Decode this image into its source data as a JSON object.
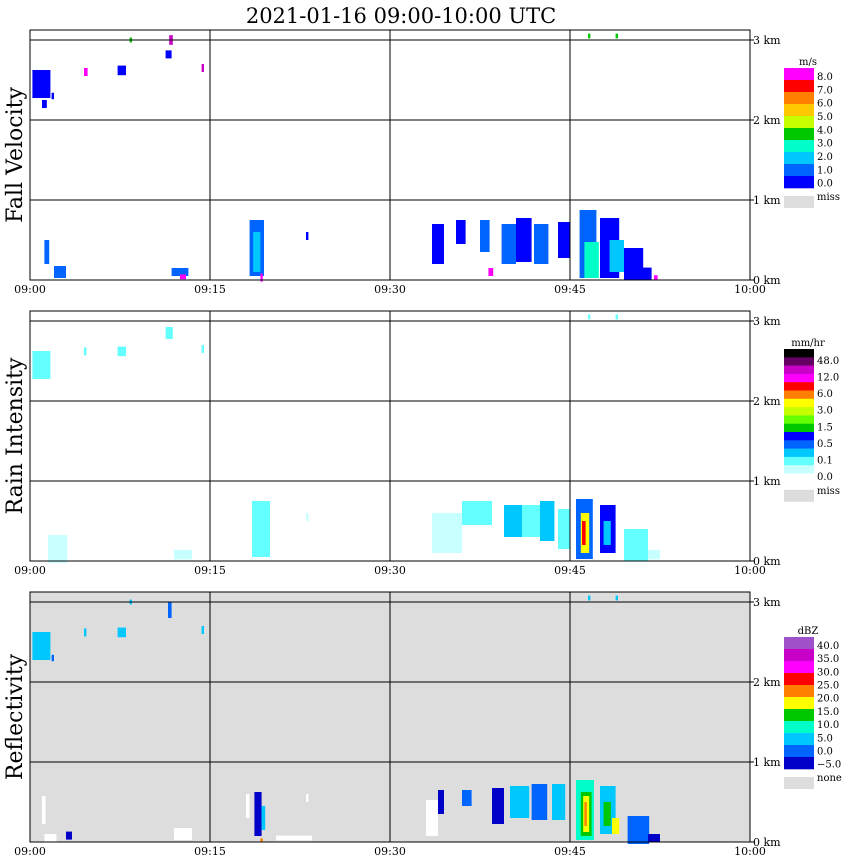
{
  "title": "2021-01-16   09:00-10:00 UTC",
  "chart_data": [
    {
      "type": "heatmap",
      "ylabel": "Fall Velocity",
      "x_ticks": [
        "09:00",
        "09:15",
        "09:30",
        "09:45",
        "10:00"
      ],
      "y_ticks": [
        "0 km",
        "1 km",
        "2 km",
        "3 km"
      ],
      "xlim": [
        "09:00",
        "10:00"
      ],
      "ylim": [
        0,
        3.1
      ],
      "grid": true,
      "background": "#ffffff",
      "legend": {
        "unit": "m/s",
        "labels": [
          "8.0",
          "7.0",
          "6.0",
          "5.0",
          "4.0",
          "3.0",
          "2.0",
          "1.0",
          "0.0"
        ],
        "colors": [
          "#ff00ff",
          "#ff0000",
          "#ff8000",
          "#ffc800",
          "#c8ff00",
          "#00c800",
          "#00ffc8",
          "#00c8ff",
          "#0064ff",
          "#0000ff"
        ],
        "missing_label": "miss",
        "missing_color": "#dddddd"
      },
      "echoes": [
        {
          "t": 0.2,
          "z": 2.45,
          "w": 1.5,
          "h": 0.35,
          "color": "#0000ff"
        },
        {
          "t": 1.0,
          "z": 2.2,
          "w": 0.4,
          "h": 0.1,
          "color": "#0000ff"
        },
        {
          "t": 1.8,
          "z": 2.3,
          "w": 0.2,
          "h": 0.08,
          "color": "#0000ff"
        },
        {
          "t": 4.5,
          "z": 2.6,
          "w": 0.3,
          "h": 0.1,
          "color": "#ff00ff"
        },
        {
          "t": 7.3,
          "z": 2.62,
          "w": 0.7,
          "h": 0.12,
          "color": "#0000ff"
        },
        {
          "t": 8.3,
          "z": 3.0,
          "w": 0.2,
          "h": 0.06,
          "color": "#00c800"
        },
        {
          "t": 11.6,
          "z": 3.0,
          "w": 0.3,
          "h": 0.12,
          "color": "#c800c8"
        },
        {
          "t": 11.3,
          "z": 2.82,
          "w": 0.5,
          "h": 0.1,
          "color": "#0000ff"
        },
        {
          "t": 14.3,
          "z": 2.65,
          "w": 0.2,
          "h": 0.1,
          "color": "#c800c8"
        },
        {
          "t": 1.2,
          "z": 0.35,
          "w": 0.4,
          "h": 0.3,
          "color": "#0064ff"
        },
        {
          "t": 2.0,
          "z": 0.1,
          "w": 1.0,
          "h": 0.15,
          "color": "#0064ff"
        },
        {
          "t": 11.8,
          "z": 0.1,
          "w": 1.4,
          "h": 0.1,
          "color": "#0064ff"
        },
        {
          "t": 12.5,
          "z": 0.04,
          "w": 0.5,
          "h": 0.06,
          "color": "#ff00ff"
        },
        {
          "t": 18.3,
          "z": 0.4,
          "w": 1.2,
          "h": 0.7,
          "color": "#0064ff"
        },
        {
          "t": 18.6,
          "z": 0.35,
          "w": 0.6,
          "h": 0.5,
          "color": "#00c8ff"
        },
        {
          "t": 19.2,
          "z": 0.03,
          "w": 0.2,
          "h": 0.1,
          "color": "#ff00ff"
        },
        {
          "t": 23.0,
          "z": 0.55,
          "w": 0.2,
          "h": 0.1,
          "color": "#0000ff"
        },
        {
          "t": 33.5,
          "z": 0.45,
          "w": 1.0,
          "h": 0.5,
          "color": "#0000ff"
        },
        {
          "t": 35.5,
          "z": 0.6,
          "w": 0.8,
          "h": 0.3,
          "color": "#0000ff"
        },
        {
          "t": 37.5,
          "z": 0.55,
          "w": 0.8,
          "h": 0.4,
          "color": "#0064ff"
        },
        {
          "t": 38.2,
          "z": 0.1,
          "w": 0.4,
          "h": 0.1,
          "color": "#ff00ff"
        },
        {
          "t": 39.3,
          "z": 0.45,
          "w": 1.2,
          "h": 0.5,
          "color": "#0064ff"
        },
        {
          "t": 40.5,
          "z": 0.5,
          "w": 1.3,
          "h": 0.55,
          "color": "#0000ff"
        },
        {
          "t": 42.0,
          "z": 0.45,
          "w": 1.2,
          "h": 0.5,
          "color": "#0064ff"
        },
        {
          "t": 44.0,
          "z": 0.5,
          "w": 1.0,
          "h": 0.45,
          "color": "#0000ff"
        },
        {
          "t": 45.8,
          "z": 0.45,
          "w": 1.4,
          "h": 0.85,
          "color": "#0064ff"
        },
        {
          "t": 46.2,
          "z": 0.25,
          "w": 1.2,
          "h": 0.45,
          "color": "#00ffc8"
        },
        {
          "t": 47.5,
          "z": 0.4,
          "w": 1.6,
          "h": 0.75,
          "color": "#0000ff"
        },
        {
          "t": 48.3,
          "z": 0.3,
          "w": 1.2,
          "h": 0.4,
          "color": "#00c8ff"
        },
        {
          "t": 49.5,
          "z": 0.2,
          "w": 1.6,
          "h": 0.4,
          "color": "#0000ff"
        },
        {
          "t": 51.0,
          "z": 0.08,
          "w": 0.8,
          "h": 0.15,
          "color": "#0000ff"
        },
        {
          "t": 52.0,
          "z": 0.03,
          "w": 0.3,
          "h": 0.06,
          "color": "#ff00ff"
        },
        {
          "t": 46.5,
          "z": 3.05,
          "w": 0.2,
          "h": 0.06,
          "color": "#00c800"
        },
        {
          "t": 48.8,
          "z": 3.05,
          "w": 0.2,
          "h": 0.06,
          "color": "#00c800"
        }
      ]
    },
    {
      "type": "heatmap",
      "ylabel": "Rain Intensity",
      "x_ticks": [
        "09:00",
        "09:15",
        "09:30",
        "09:45",
        "10:00"
      ],
      "y_ticks": [
        "0 km",
        "1 km",
        "2 km",
        "3 km"
      ],
      "xlim": [
        "09:00",
        "10:00"
      ],
      "ylim": [
        0,
        3.1
      ],
      "grid": true,
      "background": "#ffffff",
      "legend": {
        "unit": "mm/hr",
        "labels": [
          "48.0",
          "12.0",
          "6.0",
          "3.0",
          "1.5",
          "0.5",
          "0.1",
          "0.0"
        ],
        "colors": [
          "#000000",
          "#640064",
          "#c800c8",
          "#ff00ff",
          "#ff0000",
          "#ff8000",
          "#ffff00",
          "#c8ff00",
          "#64ff00",
          "#00c800",
          "#0000ff",
          "#0064ff",
          "#00c8ff",
          "#64ffff",
          "#c8ffff",
          "#ffffff"
        ],
        "missing_label": "miss",
        "missing_color": "#dddddd"
      },
      "echoes": [
        {
          "t": 0.2,
          "z": 2.45,
          "w": 1.5,
          "h": 0.35,
          "color": "#64ffff"
        },
        {
          "t": 4.5,
          "z": 2.62,
          "w": 0.2,
          "h": 0.1,
          "color": "#64ffff"
        },
        {
          "t": 7.3,
          "z": 2.62,
          "w": 0.7,
          "h": 0.12,
          "color": "#64ffff"
        },
        {
          "t": 11.3,
          "z": 2.85,
          "w": 0.6,
          "h": 0.15,
          "color": "#64ffff"
        },
        {
          "t": 14.3,
          "z": 2.65,
          "w": 0.2,
          "h": 0.1,
          "color": "#64ffff"
        },
        {
          "t": 1.5,
          "z": 0.15,
          "w": 1.6,
          "h": 0.35,
          "color": "#c8ffff"
        },
        {
          "t": 12.0,
          "z": 0.08,
          "w": 1.5,
          "h": 0.12,
          "color": "#c8ffff"
        },
        {
          "t": 18.5,
          "z": 0.4,
          "w": 1.5,
          "h": 0.7,
          "color": "#64ffff"
        },
        {
          "t": 23.0,
          "z": 0.55,
          "w": 0.2,
          "h": 0.1,
          "color": "#c8ffff"
        },
        {
          "t": 33.5,
          "z": 0.35,
          "w": 2.5,
          "h": 0.5,
          "color": "#c8ffff"
        },
        {
          "t": 36.0,
          "z": 0.6,
          "w": 2.5,
          "h": 0.3,
          "color": "#64ffff"
        },
        {
          "t": 39.5,
          "z": 0.5,
          "w": 1.5,
          "h": 0.4,
          "color": "#00c8ff"
        },
        {
          "t": 41.0,
          "z": 0.5,
          "w": 1.5,
          "h": 0.4,
          "color": "#64ffff"
        },
        {
          "t": 42.5,
          "z": 0.5,
          "w": 1.2,
          "h": 0.5,
          "color": "#00c8ff"
        },
        {
          "t": 44.0,
          "z": 0.4,
          "w": 1.0,
          "h": 0.5,
          "color": "#64ffff"
        },
        {
          "t": 45.5,
          "z": 0.4,
          "w": 1.4,
          "h": 0.75,
          "color": "#0064ff"
        },
        {
          "t": 45.9,
          "z": 0.35,
          "w": 0.7,
          "h": 0.5,
          "color": "#ffff00"
        },
        {
          "t": 46.0,
          "z": 0.35,
          "w": 0.3,
          "h": 0.3,
          "color": "#ff0000"
        },
        {
          "t": 47.5,
          "z": 0.4,
          "w": 1.3,
          "h": 0.6,
          "color": "#0000ff"
        },
        {
          "t": 47.8,
          "z": 0.35,
          "w": 0.6,
          "h": 0.3,
          "color": "#00c8ff"
        },
        {
          "t": 49.5,
          "z": 0.2,
          "w": 2.0,
          "h": 0.4,
          "color": "#64ffff"
        },
        {
          "t": 51.5,
          "z": 0.08,
          "w": 1.0,
          "h": 0.12,
          "color": "#c8ffff"
        },
        {
          "t": 46.5,
          "z": 3.05,
          "w": 0.2,
          "h": 0.06,
          "color": "#64ffff"
        },
        {
          "t": 48.8,
          "z": 3.05,
          "w": 0.2,
          "h": 0.06,
          "color": "#64ffff"
        }
      ]
    },
    {
      "type": "heatmap",
      "ylabel": "Reflectivity",
      "x_ticks": [
        "09:00",
        "09:15",
        "09:30",
        "09:45",
        "10:00"
      ],
      "y_ticks": [
        "0 km",
        "1 km",
        "2 km",
        "3 km"
      ],
      "xlim": [
        "09:00",
        "10:00"
      ],
      "ylim": [
        0,
        3.1
      ],
      "grid": true,
      "background": "#dddddd",
      "legend": {
        "unit": "dBZ",
        "labels": [
          "40.0",
          "35.0",
          "30.0",
          "25.0",
          "20.0",
          "15.0",
          "10.0",
          "5.0",
          "0.0",
          "−5.0"
        ],
        "colors": [
          "#a050c8",
          "#c800c8",
          "#ff00ff",
          "#ff0000",
          "#ff8000",
          "#ffff00",
          "#00c800",
          "#00ffc8",
          "#00c8ff",
          "#0064ff",
          "#0000c8"
        ],
        "missing_label": "none",
        "missing_color": "#dddddd"
      },
      "echoes": [
        {
          "t": 0.2,
          "z": 2.45,
          "w": 1.5,
          "h": 0.35,
          "color": "#00c8ff"
        },
        {
          "t": 1.8,
          "z": 2.3,
          "w": 0.2,
          "h": 0.08,
          "color": "#0064ff"
        },
        {
          "t": 4.5,
          "z": 2.62,
          "w": 0.2,
          "h": 0.1,
          "color": "#00c8ff"
        },
        {
          "t": 7.3,
          "z": 2.62,
          "w": 0.7,
          "h": 0.12,
          "color": "#00c8ff"
        },
        {
          "t": 8.3,
          "z": 3.0,
          "w": 0.2,
          "h": 0.06,
          "color": "#00c8ff"
        },
        {
          "t": 11.5,
          "z": 2.9,
          "w": 0.3,
          "h": 0.2,
          "color": "#0064ff"
        },
        {
          "t": 14.3,
          "z": 2.65,
          "w": 0.2,
          "h": 0.1,
          "color": "#00c8ff"
        },
        {
          "t": 1.0,
          "z": 0.4,
          "w": 0.3,
          "h": 0.35,
          "color": "#ffffff"
        },
        {
          "t": 1.2,
          "z": 0.05,
          "w": 1.0,
          "h": 0.1,
          "color": "#ffffff"
        },
        {
          "t": 3.0,
          "z": 0.08,
          "w": 0.5,
          "h": 0.1,
          "color": "#0000c8"
        },
        {
          "t": 12.0,
          "z": 0.1,
          "w": 1.5,
          "h": 0.15,
          "color": "#ffffff"
        },
        {
          "t": 18.0,
          "z": 0.45,
          "w": 0.3,
          "h": 0.3,
          "color": "#ffffff"
        },
        {
          "t": 18.7,
          "z": 0.35,
          "w": 0.6,
          "h": 0.55,
          "color": "#0000c8"
        },
        {
          "t": 19.3,
          "z": 0.3,
          "w": 0.3,
          "h": 0.3,
          "color": "#00c8ff"
        },
        {
          "t": 19.2,
          "z": 0.02,
          "w": 0.2,
          "h": 0.05,
          "color": "#ff8000"
        },
        {
          "t": 20.5,
          "z": 0.05,
          "w": 3.0,
          "h": 0.06,
          "color": "#ffffff"
        },
        {
          "t": 23.0,
          "z": 0.55,
          "w": 0.2,
          "h": 0.1,
          "color": "#ffffff"
        },
        {
          "t": 33.0,
          "z": 0.3,
          "w": 1.0,
          "h": 0.45,
          "color": "#ffffff"
        },
        {
          "t": 34.0,
          "z": 0.5,
          "w": 0.5,
          "h": 0.3,
          "color": "#0000c8"
        },
        {
          "t": 36.0,
          "z": 0.55,
          "w": 0.8,
          "h": 0.2,
          "color": "#0064ff"
        },
        {
          "t": 38.5,
          "z": 0.45,
          "w": 1.0,
          "h": 0.45,
          "color": "#0000c8"
        },
        {
          "t": 40.0,
          "z": 0.5,
          "w": 1.6,
          "h": 0.4,
          "color": "#00c8ff"
        },
        {
          "t": 41.8,
          "z": 0.5,
          "w": 1.3,
          "h": 0.45,
          "color": "#0064ff"
        },
        {
          "t": 43.5,
          "z": 0.5,
          "w": 1.1,
          "h": 0.45,
          "color": "#00c8ff"
        },
        {
          "t": 45.5,
          "z": 0.4,
          "w": 1.5,
          "h": 0.75,
          "color": "#00ffc8"
        },
        {
          "t": 45.9,
          "z": 0.35,
          "w": 0.9,
          "h": 0.55,
          "color": "#00c800"
        },
        {
          "t": 46.1,
          "z": 0.35,
          "w": 0.5,
          "h": 0.45,
          "color": "#ffff00"
        },
        {
          "t": 46.2,
          "z": 0.35,
          "w": 0.2,
          "h": 0.3,
          "color": "#ff8000"
        },
        {
          "t": 47.5,
          "z": 0.4,
          "w": 1.3,
          "h": 0.6,
          "color": "#00c8ff"
        },
        {
          "t": 47.8,
          "z": 0.35,
          "w": 0.6,
          "h": 0.3,
          "color": "#00c800"
        },
        {
          "t": 48.5,
          "z": 0.2,
          "w": 0.6,
          "h": 0.2,
          "color": "#ffff00"
        },
        {
          "t": 49.8,
          "z": 0.15,
          "w": 1.8,
          "h": 0.35,
          "color": "#0064ff"
        },
        {
          "t": 51.5,
          "z": 0.05,
          "w": 1.0,
          "h": 0.1,
          "color": "#0000c8"
        },
        {
          "t": 46.5,
          "z": 3.05,
          "w": 0.2,
          "h": 0.06,
          "color": "#00c8ff"
        },
        {
          "t": 48.8,
          "z": 3.05,
          "w": 0.2,
          "h": 0.06,
          "color": "#00c8ff"
        }
      ]
    }
  ]
}
